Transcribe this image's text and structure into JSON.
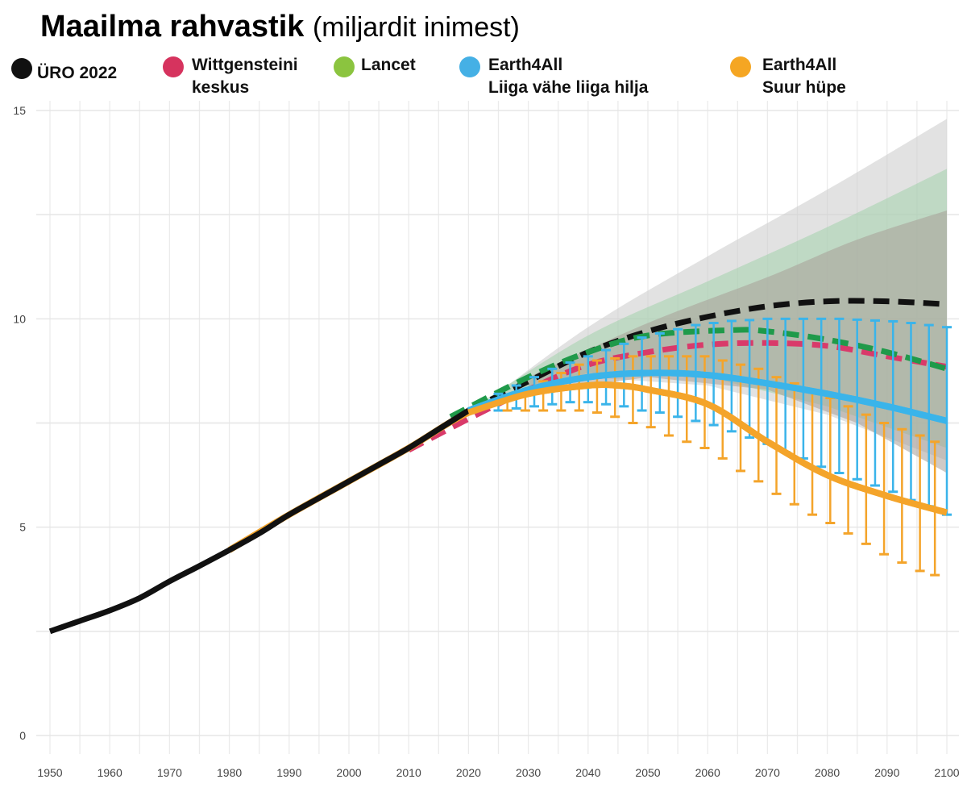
{
  "chart_data": {
    "type": "line",
    "title": "Maailma rahvastik",
    "subtitle": "(miljardit inimest)",
    "xlim": [
      1950,
      2100
    ],
    "ylim": [
      0,
      15
    ],
    "x_ticks": [
      "1950",
      "1960",
      "1970",
      "1980",
      "1990",
      "2000",
      "2010",
      "2020",
      "2030",
      "2040",
      "2050",
      "2060",
      "2070",
      "2080",
      "2090",
      "2100"
    ],
    "y_ticks": [
      "0",
      "5",
      "10",
      "15"
    ],
    "grid": true,
    "legend_position": "top",
    "legend": [
      {
        "label": "ÜRO 2022",
        "color": "#111111"
      },
      {
        "label": "Wittgensteini keskus",
        "line1": "Wittgensteini",
        "line2": "keskus",
        "color": "#d6335e"
      },
      {
        "label": "Lancet",
        "color": "#8bc43f"
      },
      {
        "label": "Earth4All Liiga vähe liiga hilja",
        "line1": "Earth4All",
        "line2": "Liiga vähe liiga hilja",
        "color": "#45b0e5"
      },
      {
        "label": "Earth4All Suur hüpe",
        "line1": "Earth4All",
        "line2": "Suur hüpe",
        "color": "#f5a623"
      }
    ],
    "bands": [
      {
        "series": "ÜRO 2022",
        "color": "#cfcfcf",
        "opacity": 0.6,
        "upper": [
          [
            2022,
            7.9
          ],
          [
            2040,
            9.8
          ],
          [
            2060,
            11.5
          ],
          [
            2080,
            13.1
          ],
          [
            2100,
            14.8
          ]
        ],
        "lower": [
          [
            2022,
            7.9
          ],
          [
            2040,
            8.6
          ],
          [
            2060,
            8.4
          ],
          [
            2080,
            7.7
          ],
          [
            2100,
            6.6
          ]
        ]
      },
      {
        "series": "Lancet",
        "color": "#9ccfa6",
        "opacity": 0.5,
        "upper": [
          [
            2020,
            7.8
          ],
          [
            2040,
            9.6
          ],
          [
            2060,
            10.9
          ],
          [
            2080,
            12.2
          ],
          [
            2100,
            13.6
          ]
        ],
        "lower": [
          [
            2020,
            7.8
          ],
          [
            2040,
            8.7
          ],
          [
            2060,
            8.6
          ],
          [
            2080,
            7.9
          ],
          [
            2100,
            6.9
          ]
        ]
      },
      {
        "series": "Wittgensteini keskus",
        "color": "#a89f98",
        "opacity": 0.55,
        "upper": [
          [
            2030,
            8.6
          ],
          [
            2050,
            9.9
          ],
          [
            2070,
            11.0
          ],
          [
            2085,
            11.9
          ],
          [
            2100,
            12.6
          ]
        ],
        "lower": [
          [
            2030,
            8.2
          ],
          [
            2050,
            8.6
          ],
          [
            2070,
            8.3
          ],
          [
            2085,
            7.5
          ],
          [
            2100,
            6.3
          ]
        ]
      }
    ],
    "series": [
      {
        "name": "ÜRO 2022",
        "color": "#111111",
        "style": "solid",
        "points": [
          [
            1950,
            2.5
          ],
          [
            1955,
            2.75
          ],
          [
            1960,
            3.0
          ],
          [
            1965,
            3.3
          ],
          [
            1970,
            3.7
          ],
          [
            1975,
            4.07
          ],
          [
            1980,
            4.45
          ],
          [
            1985,
            4.85
          ],
          [
            1990,
            5.3
          ],
          [
            1995,
            5.7
          ],
          [
            2000,
            6.1
          ],
          [
            2005,
            6.5
          ],
          [
            2010,
            6.9
          ],
          [
            2015,
            7.35
          ],
          [
            2020,
            7.8
          ]
        ]
      },
      {
        "name": "ÜRO 2022",
        "color": "#111111",
        "style": "dashed",
        "points": [
          [
            2020,
            7.8
          ],
          [
            2030,
            8.5
          ],
          [
            2040,
            9.2
          ],
          [
            2050,
            9.7
          ],
          [
            2060,
            10.05
          ],
          [
            2070,
            10.3
          ],
          [
            2080,
            10.42
          ],
          [
            2090,
            10.42
          ],
          [
            2100,
            10.35
          ]
        ]
      },
      {
        "name": "Lancet",
        "color": "#1f9a4a",
        "style": "dashed",
        "points": [
          [
            2017,
            7.65
          ],
          [
            2030,
            8.6
          ],
          [
            2040,
            9.2
          ],
          [
            2050,
            9.6
          ],
          [
            2064,
            9.73
          ],
          [
            2070,
            9.7
          ],
          [
            2080,
            9.5
          ],
          [
            2090,
            9.2
          ],
          [
            2100,
            8.8
          ]
        ]
      },
      {
        "name": "Wittgensteini keskus",
        "color": "#d93a6a",
        "style": "dashed",
        "points": [
          [
            2010,
            6.85
          ],
          [
            2020,
            7.6
          ],
          [
            2030,
            8.3
          ],
          [
            2040,
            8.9
          ],
          [
            2050,
            9.2
          ],
          [
            2060,
            9.38
          ],
          [
            2070,
            9.42
          ],
          [
            2080,
            9.35
          ],
          [
            2090,
            9.1
          ],
          [
            2100,
            8.85
          ]
        ]
      },
      {
        "name": "Earth4All Liiga vähe liiga hilja",
        "color": "#3ab4ea",
        "style": "solid",
        "points": [
          [
            2020,
            7.8
          ],
          [
            2030,
            8.3
          ],
          [
            2040,
            8.6
          ],
          [
            2050,
            8.7
          ],
          [
            2060,
            8.65
          ],
          [
            2070,
            8.45
          ],
          [
            2080,
            8.2
          ],
          [
            2090,
            7.9
          ],
          [
            2100,
            7.55
          ]
        ]
      },
      {
        "name": "Earth4All Suur hüpe",
        "color": "#f4a42a",
        "style": "solid",
        "points": [
          [
            1980,
            4.45
          ],
          [
            1990,
            5.3
          ],
          [
            2000,
            6.1
          ],
          [
            2010,
            6.9
          ],
          [
            2020,
            7.75
          ],
          [
            2030,
            8.2
          ],
          [
            2040,
            8.4
          ],
          [
            2045,
            8.4
          ],
          [
            2050,
            8.3
          ],
          [
            2060,
            7.95
          ],
          [
            2070,
            7.05
          ],
          [
            2080,
            6.25
          ],
          [
            2090,
            5.75
          ],
          [
            2100,
            5.35
          ]
        ]
      }
    ],
    "error_bars": [
      {
        "series": "Earth4All Liiga vähe liiga hilja",
        "color": "#3ab4ea",
        "bars": [
          [
            2025,
            7.8,
            8.2
          ],
          [
            2028,
            7.85,
            8.4
          ],
          [
            2031,
            7.9,
            8.6
          ],
          [
            2034,
            7.95,
            8.8
          ],
          [
            2037,
            8.0,
            8.95
          ],
          [
            2040,
            8.0,
            9.1
          ],
          [
            2043,
            7.95,
            9.25
          ],
          [
            2046,
            7.9,
            9.4
          ],
          [
            2049,
            7.8,
            9.55
          ],
          [
            2052,
            7.75,
            9.65
          ],
          [
            2055,
            7.65,
            9.75
          ],
          [
            2058,
            7.55,
            9.85
          ],
          [
            2061,
            7.45,
            9.9
          ],
          [
            2064,
            7.3,
            9.95
          ],
          [
            2067,
            7.15,
            9.97
          ],
          [
            2070,
            7.0,
            10.0
          ],
          [
            2073,
            6.8,
            10.0
          ],
          [
            2076,
            6.65,
            10.0
          ],
          [
            2079,
            6.45,
            10.0
          ],
          [
            2082,
            6.3,
            10.0
          ],
          [
            2085,
            6.15,
            9.98
          ],
          [
            2088,
            6.0,
            9.96
          ],
          [
            2091,
            5.85,
            9.94
          ],
          [
            2094,
            5.65,
            9.9
          ],
          [
            2097,
            5.5,
            9.85
          ],
          [
            2100,
            5.3,
            9.8
          ]
        ]
      },
      {
        "series": "Earth4All Suur hüpe",
        "color": "#f4a42a",
        "bars": [
          [
            2026.5,
            7.8,
            8.05
          ],
          [
            2029.5,
            7.8,
            8.3
          ],
          [
            2032.5,
            7.8,
            8.5
          ],
          [
            2035.5,
            7.8,
            8.7
          ],
          [
            2038.5,
            7.8,
            8.9
          ],
          [
            2041.5,
            7.75,
            9.0
          ],
          [
            2044.5,
            7.65,
            9.05
          ],
          [
            2047.5,
            7.5,
            9.1
          ],
          [
            2050.5,
            7.4,
            9.1
          ],
          [
            2053.5,
            7.2,
            9.1
          ],
          [
            2056.5,
            7.05,
            9.1
          ],
          [
            2059.5,
            6.9,
            9.1
          ],
          [
            2062.5,
            6.65,
            9.0
          ],
          [
            2065.5,
            6.35,
            8.9
          ],
          [
            2068.5,
            6.1,
            8.8
          ],
          [
            2071.5,
            5.8,
            8.6
          ],
          [
            2074.5,
            5.55,
            8.45
          ],
          [
            2077.5,
            5.3,
            8.25
          ],
          [
            2080.5,
            5.1,
            8.1
          ],
          [
            2083.5,
            4.85,
            7.9
          ],
          [
            2086.5,
            4.6,
            7.7
          ],
          [
            2089.5,
            4.35,
            7.5
          ],
          [
            2092.5,
            4.15,
            7.35
          ],
          [
            2095.5,
            3.95,
            7.2
          ],
          [
            2098,
            3.85,
            7.05
          ]
        ]
      }
    ]
  }
}
